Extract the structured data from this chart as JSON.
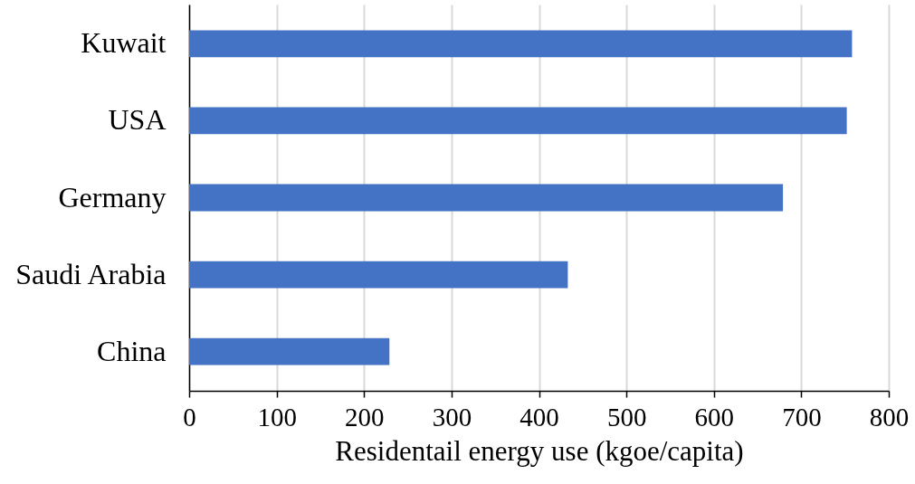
{
  "chart_data": {
    "type": "bar",
    "orientation": "horizontal",
    "categories": [
      "Kuwait",
      "USA",
      "Germany",
      "Saudi Arabia",
      "China"
    ],
    "values": [
      758,
      752,
      679,
      433,
      229
    ],
    "color": "#4472c4",
    "xlabel": "Residentail energy use (kgoe/capita)",
    "xlim": [
      0,
      800
    ],
    "xticks": [
      0,
      100,
      200,
      300,
      400,
      500,
      600,
      700,
      800
    ],
    "grid": "x"
  }
}
